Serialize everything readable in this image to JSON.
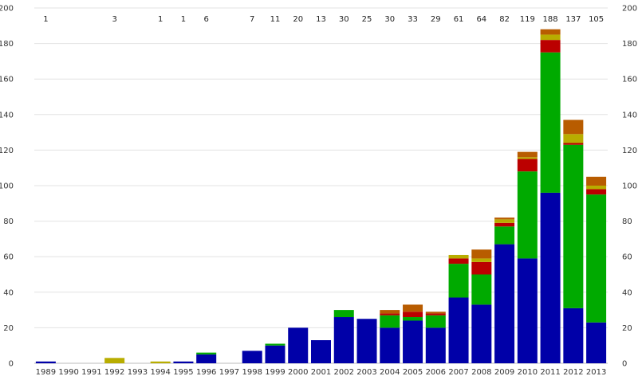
{
  "chart_data": {
    "type": "bar",
    "stacked": true,
    "categories": [
      "1989",
      "1990",
      "1991",
      "1992",
      "1993",
      "1994",
      "1995",
      "1996",
      "1997",
      "1998",
      "1999",
      "2000",
      "2001",
      "2002",
      "2003",
      "2004",
      "2005",
      "2006",
      "2007",
      "2008",
      "2009",
      "2010",
      "2011",
      "2012",
      "2013"
    ],
    "totals": [
      "1",
      "",
      "",
      "3",
      "",
      "1",
      "1",
      "6",
      "",
      "7",
      "11",
      "20",
      "13",
      "30",
      "25",
      "30",
      "33",
      "29",
      "61",
      "64",
      "82",
      "119",
      "188",
      "137",
      "105"
    ],
    "series": [
      {
        "color": "#0000a8",
        "values": [
          1,
          0,
          0,
          0,
          0,
          0,
          1,
          5,
          0,
          7,
          10,
          20,
          13,
          26,
          25,
          20,
          24,
          20,
          37,
          33,
          67,
          59,
          96,
          31,
          23
        ]
      },
      {
        "color": "#00aa00",
        "values": [
          0,
          0,
          0,
          0,
          0,
          0,
          0,
          1,
          0,
          0,
          1,
          0,
          0,
          4,
          0,
          7,
          2,
          7,
          19,
          17,
          10,
          49,
          79,
          92,
          72
        ]
      },
      {
        "color": "#bb0000",
        "values": [
          0,
          0,
          0,
          0,
          0,
          0,
          0,
          0,
          0,
          0,
          0,
          0,
          0,
          0,
          0,
          1,
          3,
          1,
          3,
          7,
          2,
          7,
          7,
          1,
          3
        ]
      },
      {
        "color": "#b8ad00",
        "values": [
          0,
          0,
          0,
          3,
          0,
          1,
          0,
          0,
          0,
          0,
          0,
          0,
          0,
          0,
          0,
          0,
          0,
          0,
          2,
          2,
          2,
          1,
          3,
          5,
          2
        ]
      },
      {
        "color": "#b85c00",
        "values": [
          0,
          0,
          0,
          0,
          0,
          0,
          0,
          0,
          0,
          0,
          0,
          0,
          0,
          0,
          0,
          2,
          4,
          1,
          0,
          5,
          1,
          3,
          3,
          8,
          5
        ]
      }
    ],
    "ylim": [
      0,
      200
    ],
    "yticks": [
      "0",
      "20",
      "40",
      "60",
      "80",
      "100",
      "120",
      "140",
      "160",
      "180",
      "200"
    ],
    "y_axis": "both sides",
    "grid": true,
    "legend": "none"
  }
}
